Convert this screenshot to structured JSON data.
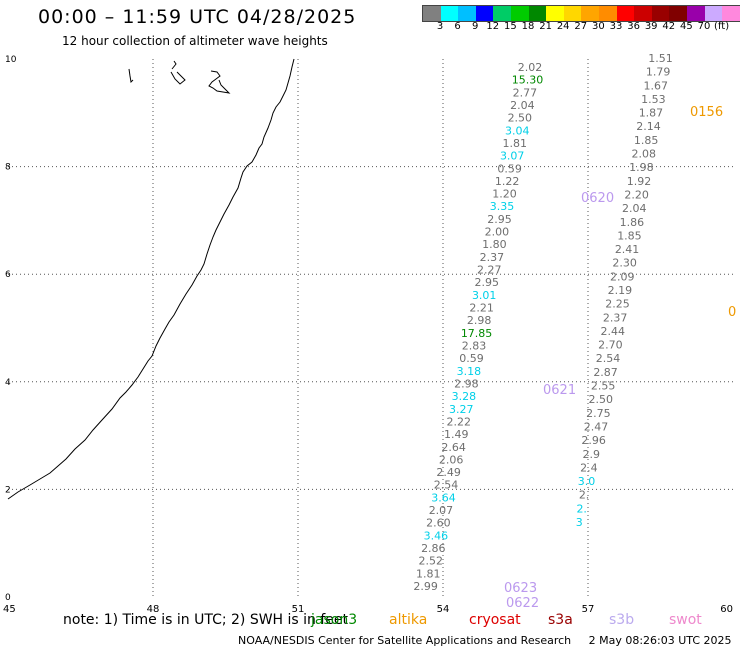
{
  "header": {
    "title": "00:00 – 11:59 UTC 04/28/2025",
    "subtitle": "12 hour collection of altimeter wave heights"
  },
  "colorbar": {
    "colors": [
      "#808080",
      "#00ffff",
      "#00bfff",
      "#0000ff",
      "#00cc66",
      "#00cc00",
      "#008800",
      "#ffff00",
      "#ffd700",
      "#ffa500",
      "#ff8c00",
      "#ff0000",
      "#cc0000",
      "#990000",
      "#800000",
      "#9900aa",
      "#ccaaff",
      "#ff88dd",
      "#000000"
    ],
    "labels": [
      "3",
      "6",
      "9",
      "12",
      "15",
      "18",
      "21",
      "24",
      "27",
      "30",
      "33",
      "36",
      "39",
      "42",
      "45",
      "70",
      "(ft)"
    ]
  },
  "axes": {
    "x_ticks": [
      "45",
      "48",
      "51",
      "54",
      "57",
      "60"
    ],
    "y_ticks": [
      "0",
      "2",
      "4",
      "6",
      "8",
      "10"
    ],
    "xlim": [
      45,
      60
    ],
    "ylim": [
      0,
      10
    ]
  },
  "tracks": {
    "a": {
      "x": 55.8,
      "values": [
        "2.02",
        "15.30",
        "2.77",
        "2.04",
        "2.50",
        "3.04",
        "1.81",
        "3.07",
        "0.59",
        "1.22",
        "1.20",
        "3.35",
        "2.95",
        "2.00",
        "1.80",
        "2.37",
        "2.27",
        "2.95",
        "3.01",
        "2.21",
        "2.98",
        "17.85",
        "2.83",
        "0.59",
        "3.18",
        "2.98",
        "3.28",
        "3.27",
        "2.22",
        "1.49",
        "2.64",
        "2.06",
        "2.49",
        "2.54",
        "3.64",
        "2.07",
        "2.60",
        "3.46",
        "2.86",
        "2.52",
        "1.81",
        "2.99"
      ],
      "colors": [
        "gray",
        "green",
        "gray",
        "gray",
        "gray",
        "cyan",
        "gray",
        "cyan",
        "gray",
        "gray",
        "gray",
        "cyan",
        "gray",
        "gray",
        "gray",
        "gray",
        "gray",
        "gray",
        "cyan",
        "gray",
        "gray",
        "green",
        "gray",
        "gray",
        "cyan",
        "gray",
        "cyan",
        "cyan",
        "gray",
        "gray",
        "gray",
        "gray",
        "gray",
        "gray",
        "cyan",
        "gray",
        "gray",
        "cyan",
        "gray",
        "gray",
        "gray",
        "gray"
      ]
    },
    "b": {
      "x": 58.5,
      "values": [
        "1.51",
        "1.79",
        "1.67",
        "1.53",
        "1.87",
        "2.14",
        "1.85",
        "2.08",
        "1.98",
        "1.92",
        "2.20",
        "2.04",
        "1.86",
        "1.85",
        "2.41",
        "2.30",
        "2.09",
        "2.19",
        "2.25",
        "2.37",
        "2.44",
        "2.70",
        "2.54",
        "2.87",
        "2.55",
        "2.50",
        "2.75",
        "2.47",
        "2.96",
        "2.9",
        "2.4",
        "3.0",
        "2.",
        "2.",
        "3"
      ],
      "colors": [
        "gray",
        "gray",
        "gray",
        "gray",
        "gray",
        "gray",
        "gray",
        "gray",
        "gray",
        "gray",
        "gray",
        "gray",
        "gray",
        "gray",
        "gray",
        "gray",
        "gray",
        "gray",
        "gray",
        "gray",
        "gray",
        "gray",
        "gray",
        "gray",
        "gray",
        "gray",
        "gray",
        "gray",
        "gray",
        "gray",
        "gray",
        "cyan",
        "gray",
        "cyan",
        "cyan"
      ]
    }
  },
  "time_tags": [
    {
      "text": "0156",
      "color": "#ee9900"
    },
    {
      "text": "0620",
      "color": "#bb99ee"
    },
    {
      "text": "0621",
      "color": "#bb99ee"
    },
    {
      "text": "0622",
      "color": "#bb99ee"
    },
    {
      "text": "0623",
      "color": "#bb99ee"
    },
    {
      "text": "0",
      "color": "#ee9900"
    }
  ],
  "legend": {
    "note": "note:  1) Time is in UTC;  2) SWH is in feet",
    "items": [
      {
        "label": "jason3",
        "color": "#008800"
      },
      {
        "label": "altika",
        "color": "#ee9900"
      },
      {
        "label": "cryosat",
        "color": "#dd0000"
      },
      {
        "label": "s3a",
        "color": "#990000"
      },
      {
        "label": "s3b",
        "color": "#bbaaee"
      },
      {
        "label": "swot",
        "color": "#ee88cc"
      }
    ]
  },
  "credit": "NOAA/NESDIS Center for Satellite Applications and Research     2 May 08:26:03 UTC 2025"
}
